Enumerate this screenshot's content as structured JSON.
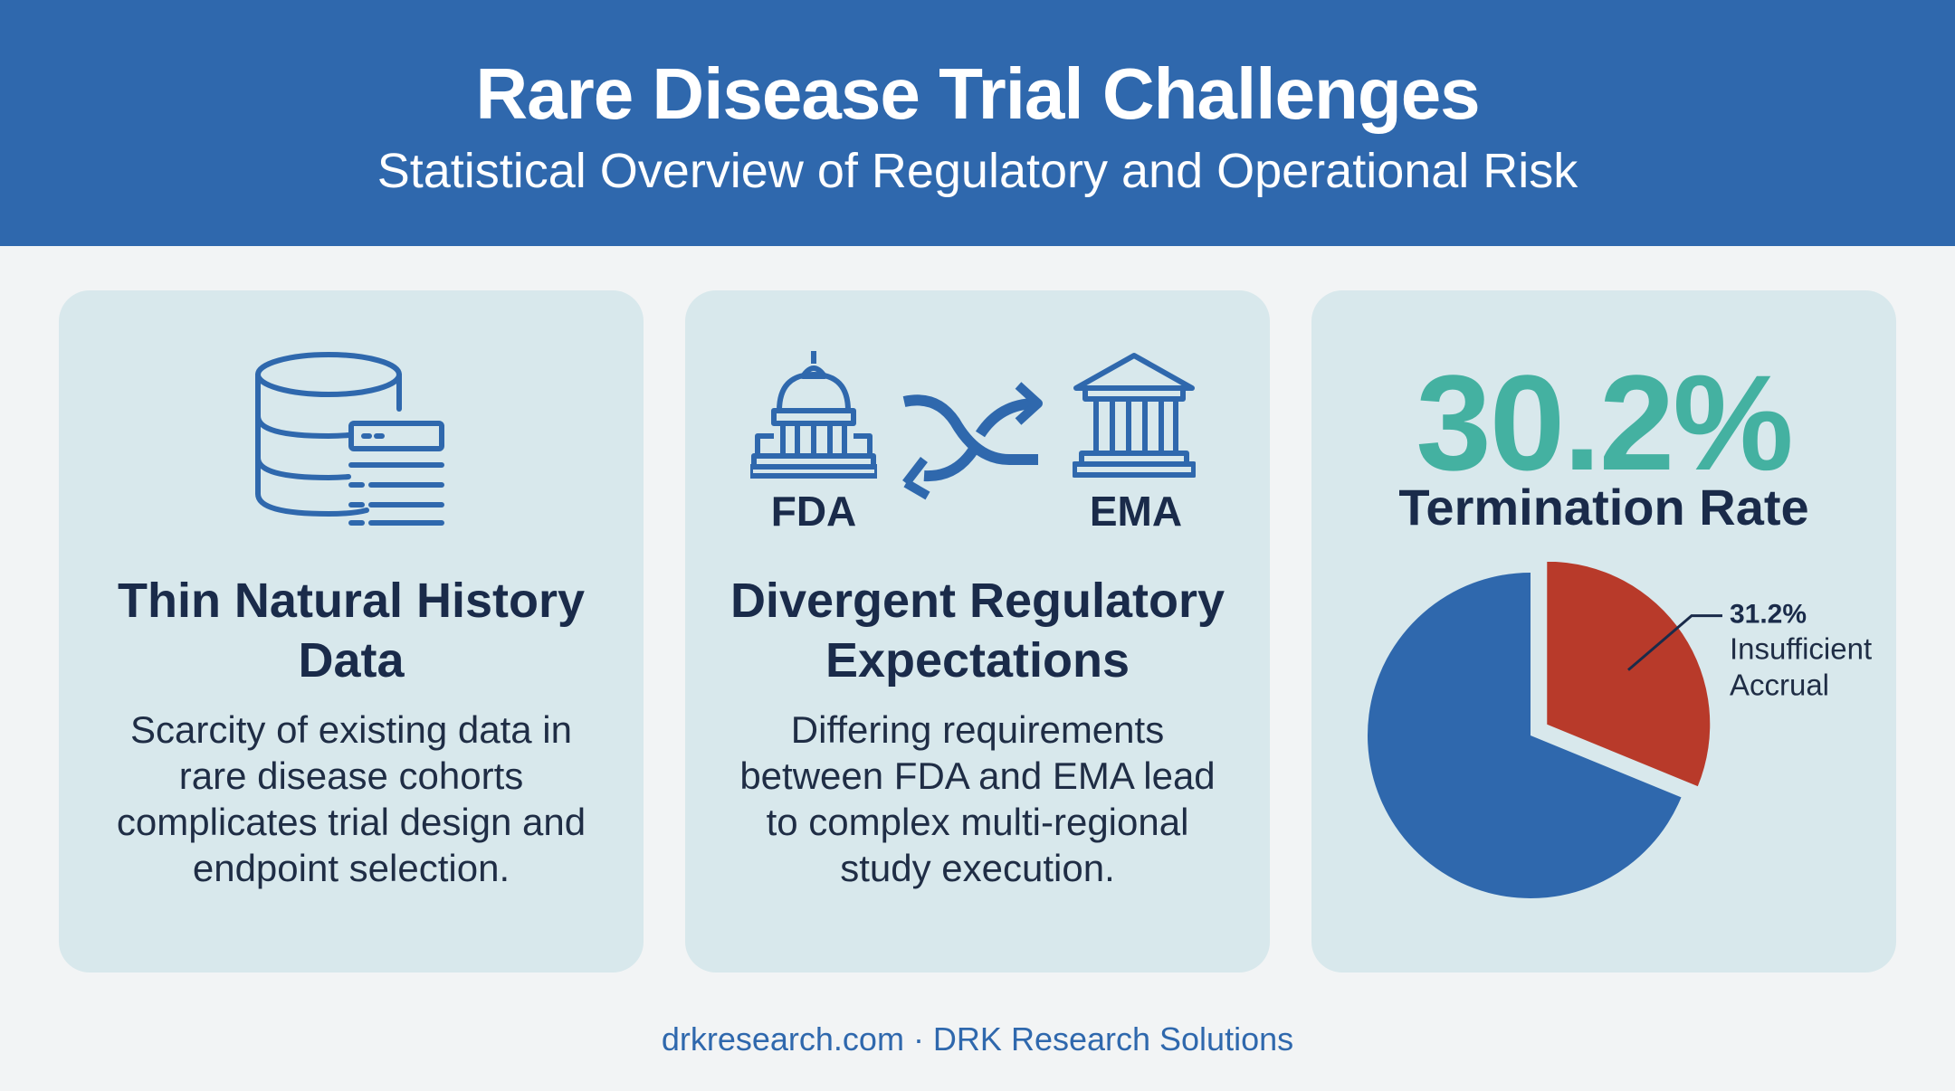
{
  "header": {
    "title": "Rare Disease Trial Challenges",
    "subtitle": "Statistical Overview of Regulatory and Operational Risk"
  },
  "cards": [
    {
      "icon": "database-document-icon",
      "title": "Thin Natural History Data",
      "body": "Scarcity of existing data in rare disease cohorts complicates trial design and endpoint selection."
    },
    {
      "icons": [
        "capitol-icon",
        "swap-arrows-icon",
        "bank-building-icon"
      ],
      "labels": [
        "FDA",
        "EMA"
      ],
      "title": "Divergent Regulatory Expectations",
      "body": "Differing requirements between FDA and EMA lead to complex multi-regional study execution."
    },
    {
      "stat_value": "30.2%",
      "stat_label": "Termination Rate"
    }
  ],
  "chart_data": {
    "type": "pie",
    "slices": [
      {
        "label": "Insufficient Accrual",
        "value": 31.2,
        "display": "31.2%",
        "color": "#b83a2a",
        "exploded": true
      },
      {
        "label": "",
        "value": 68.8,
        "color": "#2f68ad"
      }
    ]
  },
  "footer": {
    "text": "drkresearch.com · DRK Research Solutions"
  },
  "colors": {
    "header_bg": "#2f68ad",
    "card_bg": "#d8e8ec",
    "accent_teal": "#44b1a1",
    "icon_blue": "#2f68ad"
  }
}
